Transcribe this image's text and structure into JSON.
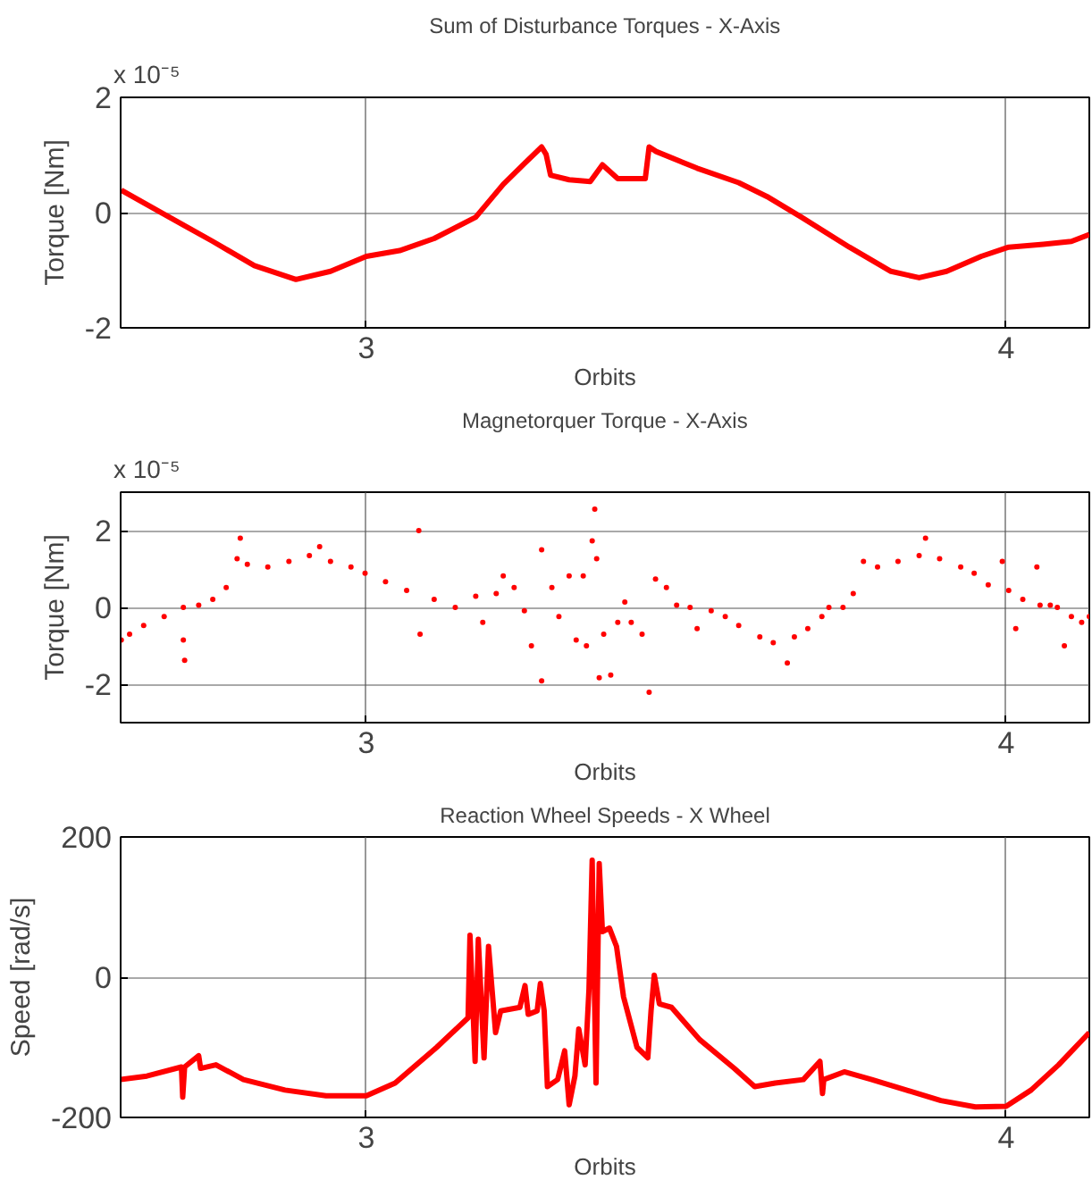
{
  "chart_data": [
    {
      "type": "line",
      "title": "Sum of Disturbance Torques - X-Axis",
      "xlabel": "Orbits",
      "ylabel": "Torque [Nm]",
      "annotations": [
        "x 10⁻⁵"
      ],
      "xlim": [
        2.616,
        4.13
      ],
      "xticks": [
        3,
        4
      ],
      "ylim": [
        -2,
        2
      ],
      "yticks": [
        -2,
        0,
        2
      ],
      "grid": true,
      "line_style": "solid",
      "marker": "none",
      "series": [
        {
          "color": "#ff0000",
          "x": [
            2.617,
            2.684,
            2.76,
            2.825,
            2.89,
            2.944,
            3.0,
            3.052,
            3.106,
            3.171,
            3.214,
            3.247,
            3.274,
            3.281,
            3.288,
            3.317,
            3.35,
            3.369,
            3.393,
            3.436,
            3.442,
            3.453,
            3.517,
            3.582,
            3.626,
            3.68,
            3.755,
            3.82,
            3.864,
            3.907,
            3.961,
            4.004,
            4.058,
            4.102,
            4.13
          ],
          "values": [
            0.39,
            -0.03,
            -0.5,
            -0.92,
            -1.16,
            -1.02,
            -0.76,
            -0.66,
            -0.45,
            -0.08,
            0.49,
            0.85,
            1.14,
            1.01,
            0.65,
            0.57,
            0.54,
            0.83,
            0.59,
            0.59,
            1.14,
            1.06,
            0.77,
            0.52,
            0.28,
            -0.08,
            -0.6,
            -1.02,
            -1.13,
            -1.02,
            -0.76,
            -0.6,
            -0.55,
            -0.5,
            -0.38
          ]
        }
      ]
    },
    {
      "type": "scatter",
      "title": "Magnetorquer Torque - X-Axis",
      "xlabel": "Orbits",
      "ylabel": "Torque [Nm]",
      "annotations": [
        "x 10⁻⁵"
      ],
      "xlim": [
        2.616,
        4.13
      ],
      "xticks": [
        3,
        4
      ],
      "ylim": [
        -3,
        3
      ],
      "yticks": [
        -2,
        0,
        2
      ],
      "grid": true,
      "marker": "circle",
      "series": [
        {
          "color": "#ff0000",
          "x": [
            2.617,
            2.63,
            2.652,
            2.684,
            2.714,
            2.714,
            2.716,
            2.738,
            2.76,
            2.781,
            2.798,
            2.803,
            2.814,
            2.846,
            2.879,
            2.911,
            2.927,
            2.944,
            2.976,
            2.998,
            3.03,
            3.063,
            3.082,
            3.084,
            3.106,
            3.139,
            3.171,
            3.182,
            3.203,
            3.214,
            3.231,
            3.247,
            3.258,
            3.274,
            3.274,
            3.29,
            3.301,
            3.317,
            3.328,
            3.339,
            3.344,
            3.353,
            3.357,
            3.36,
            3.364,
            3.371,
            3.382,
            3.393,
            3.404,
            3.414,
            3.431,
            3.442,
            3.452,
            3.469,
            3.485,
            3.506,
            3.517,
            3.539,
            3.561,
            3.582,
            3.615,
            3.636,
            3.658,
            3.669,
            3.69,
            3.712,
            3.723,
            3.745,
            3.761,
            3.777,
            3.799,
            3.831,
            3.864,
            3.874,
            3.896,
            3.929,
            3.95,
            3.972,
            3.994,
            4.004,
            4.015,
            4.026,
            4.048,
            4.053,
            4.069,
            4.08,
            4.091,
            4.102,
            4.118,
            4.13
          ],
          "values": [
            -0.85,
            -0.7,
            -0.47,
            -0.24,
            0,
            -0.85,
            -1.38,
            0.06,
            0.21,
            0.52,
            1.27,
            1.8,
            1.12,
            1.05,
            1.2,
            1.35,
            1.58,
            1.2,
            1.05,
            0.89,
            0.67,
            0.44,
            2.0,
            -0.7,
            0.21,
            0,
            0.29,
            -0.39,
            0.36,
            0.82,
            0.52,
            -0.09,
            -1.0,
            1.5,
            -1.91,
            0.52,
            -0.24,
            0.82,
            -0.85,
            0.82,
            -1.0,
            1.73,
            2.56,
            1.27,
            -1.83,
            -0.7,
            -1.76,
            -0.39,
            0.14,
            -0.39,
            -0.7,
            -2.21,
            0.74,
            0.52,
            0.06,
            0,
            -0.55,
            -0.09,
            -0.24,
            -0.47,
            -0.77,
            -0.92,
            -1.45,
            -0.77,
            -0.55,
            -0.24,
            0,
            0,
            0.36,
            1.2,
            1.05,
            1.2,
            1.35,
            1.8,
            1.27,
            1.05,
            0.89,
            0.59,
            1.2,
            0.44,
            -0.55,
            0.21,
            1.05,
            0.06,
            0.06,
            0,
            -1.0,
            -0.24,
            -0.39,
            -0.24
          ]
        }
      ]
    },
    {
      "type": "line",
      "title": "Reaction Wheel Speeds - X Wheel",
      "xlabel": "Orbits",
      "ylabel": "Speed [rad/s]",
      "xlim": [
        2.616,
        4.13
      ],
      "xticks": [
        3,
        4
      ],
      "ylim": [
        -200,
        200
      ],
      "yticks": [
        -200,
        0,
        200
      ],
      "grid": true,
      "line_style": "solid",
      "marker": "none",
      "series": [
        {
          "color": "#ff0000",
          "x": [
            2.616,
            2.657,
            2.711,
            2.713,
            2.716,
            2.738,
            2.741,
            2.765,
            2.808,
            2.873,
            2.937,
            3.0,
            3.045,
            3.11,
            3.159,
            3.162,
            3.17,
            3.175,
            3.184,
            3.191,
            3.202,
            3.21,
            3.24,
            3.248,
            3.253,
            3.267,
            3.272,
            3.278,
            3.283,
            3.299,
            3.31,
            3.317,
            3.326,
            3.332,
            3.342,
            3.348,
            3.353,
            3.359,
            3.364,
            3.369,
            3.38,
            3.391,
            3.402,
            3.423,
            3.44,
            3.445,
            3.45,
            3.458,
            3.477,
            3.521,
            3.575,
            3.607,
            3.639,
            3.683,
            3.709,
            3.713,
            3.715,
            3.747,
            3.79,
            3.844,
            3.898,
            3.952,
            4.0,
            4.039,
            4.082,
            4.13
          ],
          "values": [
            -146,
            -141,
            -128,
            -171,
            -128,
            -112,
            -130,
            -125,
            -146,
            -161,
            -169,
            -169,
            -151,
            -100,
            -58,
            60,
            -120,
            54,
            -115,
            44,
            -79,
            -48,
            -43,
            -12,
            -53,
            -48,
            -9,
            -48,
            -156,
            -146,
            -105,
            -182,
            -141,
            -74,
            -125,
            -17,
            167,
            -151,
            162,
            65,
            70,
            44,
            -28,
            -100,
            -115,
            -48,
            3,
            -38,
            -43,
            -89,
            -130,
            -156,
            -151,
            -146,
            -120,
            -166,
            -146,
            -135,
            -146,
            -161,
            -176,
            -185,
            -184,
            -161,
            -125,
            -79
          ]
        }
      ]
    }
  ]
}
